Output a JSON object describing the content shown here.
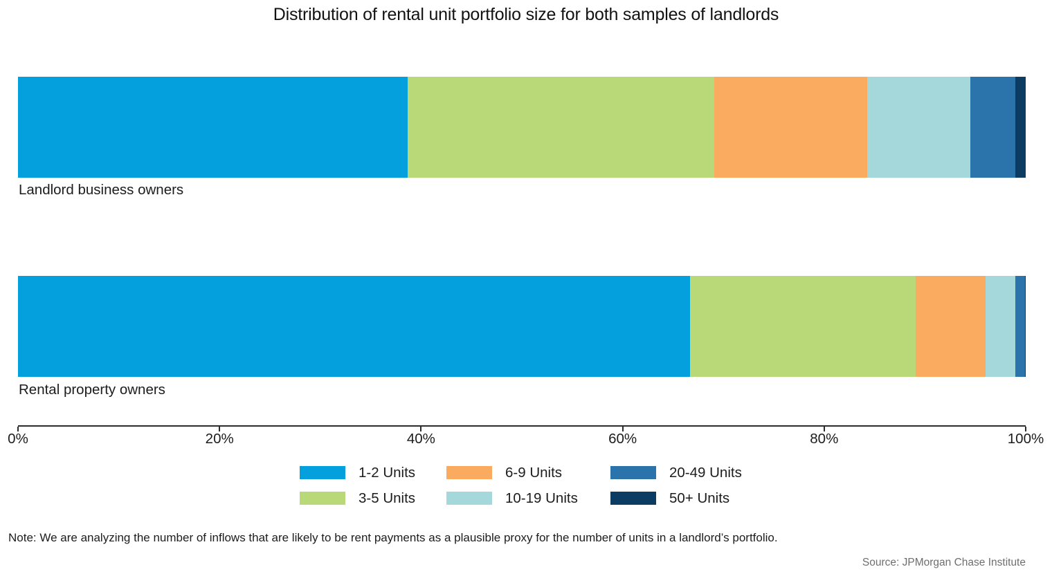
{
  "chart_data": {
    "type": "bar",
    "stacked": true,
    "orientation": "horizontal",
    "title": "Distribution of rental unit portfolio size for both samples of landlords",
    "categories": [
      "Landlord business owners",
      "Rental property owners"
    ],
    "series": [
      {
        "name": "1-2 Units",
        "color": "#04A0DE",
        "values": [
          38.7,
          66.7
        ]
      },
      {
        "name": "3-5 Units",
        "color": "#B9D877",
        "values": [
          30.4,
          22.4
        ]
      },
      {
        "name": "6-9 Units",
        "color": "#FBAB60",
        "values": [
          15.2,
          6.9
        ]
      },
      {
        "name": "10-19 Units",
        "color": "#A5D8DA",
        "values": [
          10.2,
          3.0
        ]
      },
      {
        "name": "20-49 Units",
        "color": "#2B73AB",
        "values": [
          4.5,
          0.9
        ]
      },
      {
        "name": "50+ Units",
        "color": "#0D3C63",
        "values": [
          1.0,
          0.1
        ]
      }
    ],
    "xlim": [
      0,
      100
    ],
    "x_ticks": [
      "0%",
      "20%",
      "40%",
      "60%",
      "80%",
      "100%"
    ],
    "x_tick_positions": [
      0,
      20,
      40,
      60,
      80,
      100
    ],
    "grid": false,
    "legend_position": "bottom-center",
    "axis_color": "#2b2b2b",
    "note": "Note: We are analyzing the number of inflows that are likely to be rent payments as a plausible proxy for the number of units in a landlord’s portfolio.",
    "source": "Source: JPMorgan Chase Institute"
  }
}
